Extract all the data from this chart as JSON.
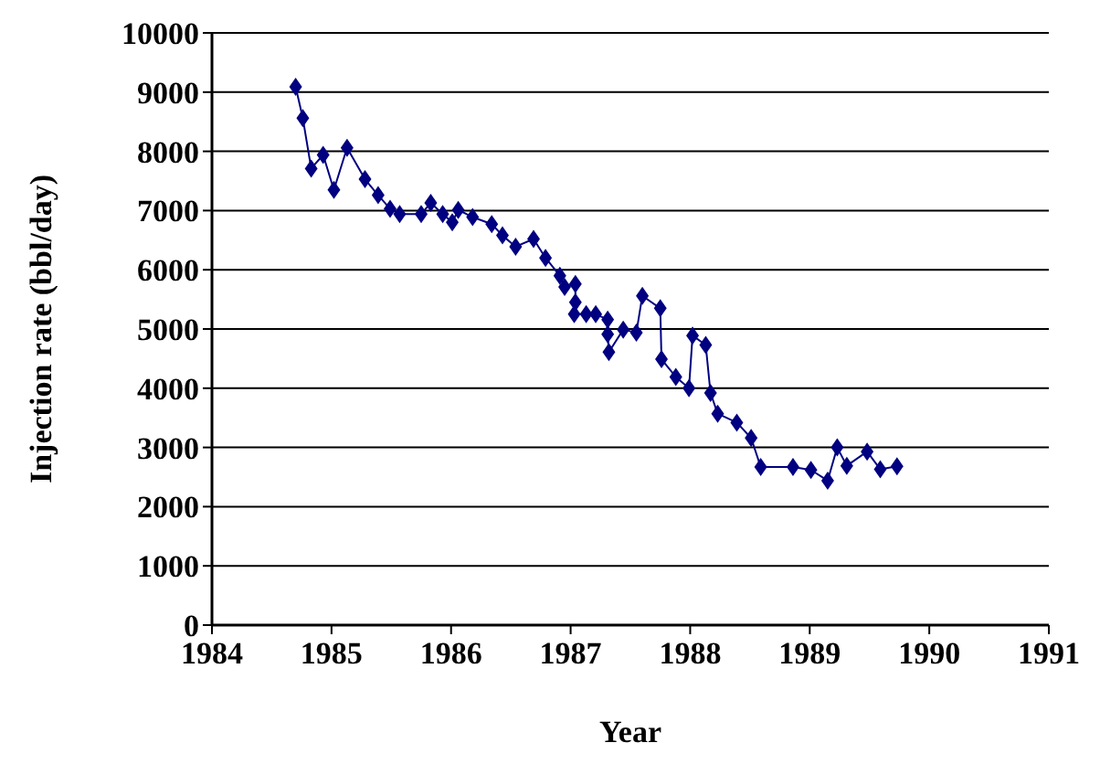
{
  "chart_data": {
    "type": "line",
    "xlabel": "Year",
    "ylabel": "Injection rate (bbl/day)",
    "xlim": [
      1984,
      1991
    ],
    "xticks": [
      1984,
      1985,
      1986,
      1987,
      1988,
      1989,
      1990,
      1991
    ],
    "ylim": [
      0,
      10000
    ],
    "yticks": [
      0,
      1000,
      2000,
      3000,
      4000,
      5000,
      6000,
      7000,
      8000,
      9000,
      10000
    ],
    "grid": "y",
    "marker": "diamond",
    "line_style": "solid",
    "series": [
      {
        "color": "#000080",
        "x": [
          1984.7,
          1984.76,
          1984.83,
          1984.93,
          1985.02,
          1985.13,
          1985.28,
          1985.39,
          1985.49,
          1985.57,
          1985.75,
          1985.83,
          1985.93,
          1986.01,
          1986.06,
          1986.18,
          1986.34,
          1986.43,
          1986.54,
          1986.69,
          1986.79,
          1986.91,
          1986.95,
          1987.04,
          1987.04,
          1987.03,
          1987.13,
          1987.21,
          1987.31,
          1987.31,
          1987.32,
          1987.44,
          1987.55,
          1987.6,
          1987.75,
          1987.76,
          1987.88,
          1987.99,
          1988.02,
          1988.13,
          1988.17,
          1988.23,
          1988.39,
          1988.51,
          1988.59,
          1988.86,
          1989.01,
          1989.15,
          1989.23,
          1989.31,
          1989.48,
          1989.59,
          1989.73
        ],
        "values": [
          9090,
          8560,
          7710,
          7940,
          7350,
          8060,
          7530,
          7260,
          7030,
          6940,
          6940,
          7130,
          6940,
          6800,
          7010,
          6890,
          6770,
          6580,
          6390,
          6520,
          6200,
          5900,
          5710,
          5760,
          5450,
          5250,
          5250,
          5250,
          5160,
          4910,
          4610,
          4990,
          4940,
          5560,
          5350,
          4490,
          4190,
          4000,
          4890,
          4730,
          3920,
          3570,
          3420,
          3160,
          2670,
          2670,
          2620,
          2440,
          3000,
          2690,
          2930,
          2630,
          2680
        ]
      }
    ]
  }
}
